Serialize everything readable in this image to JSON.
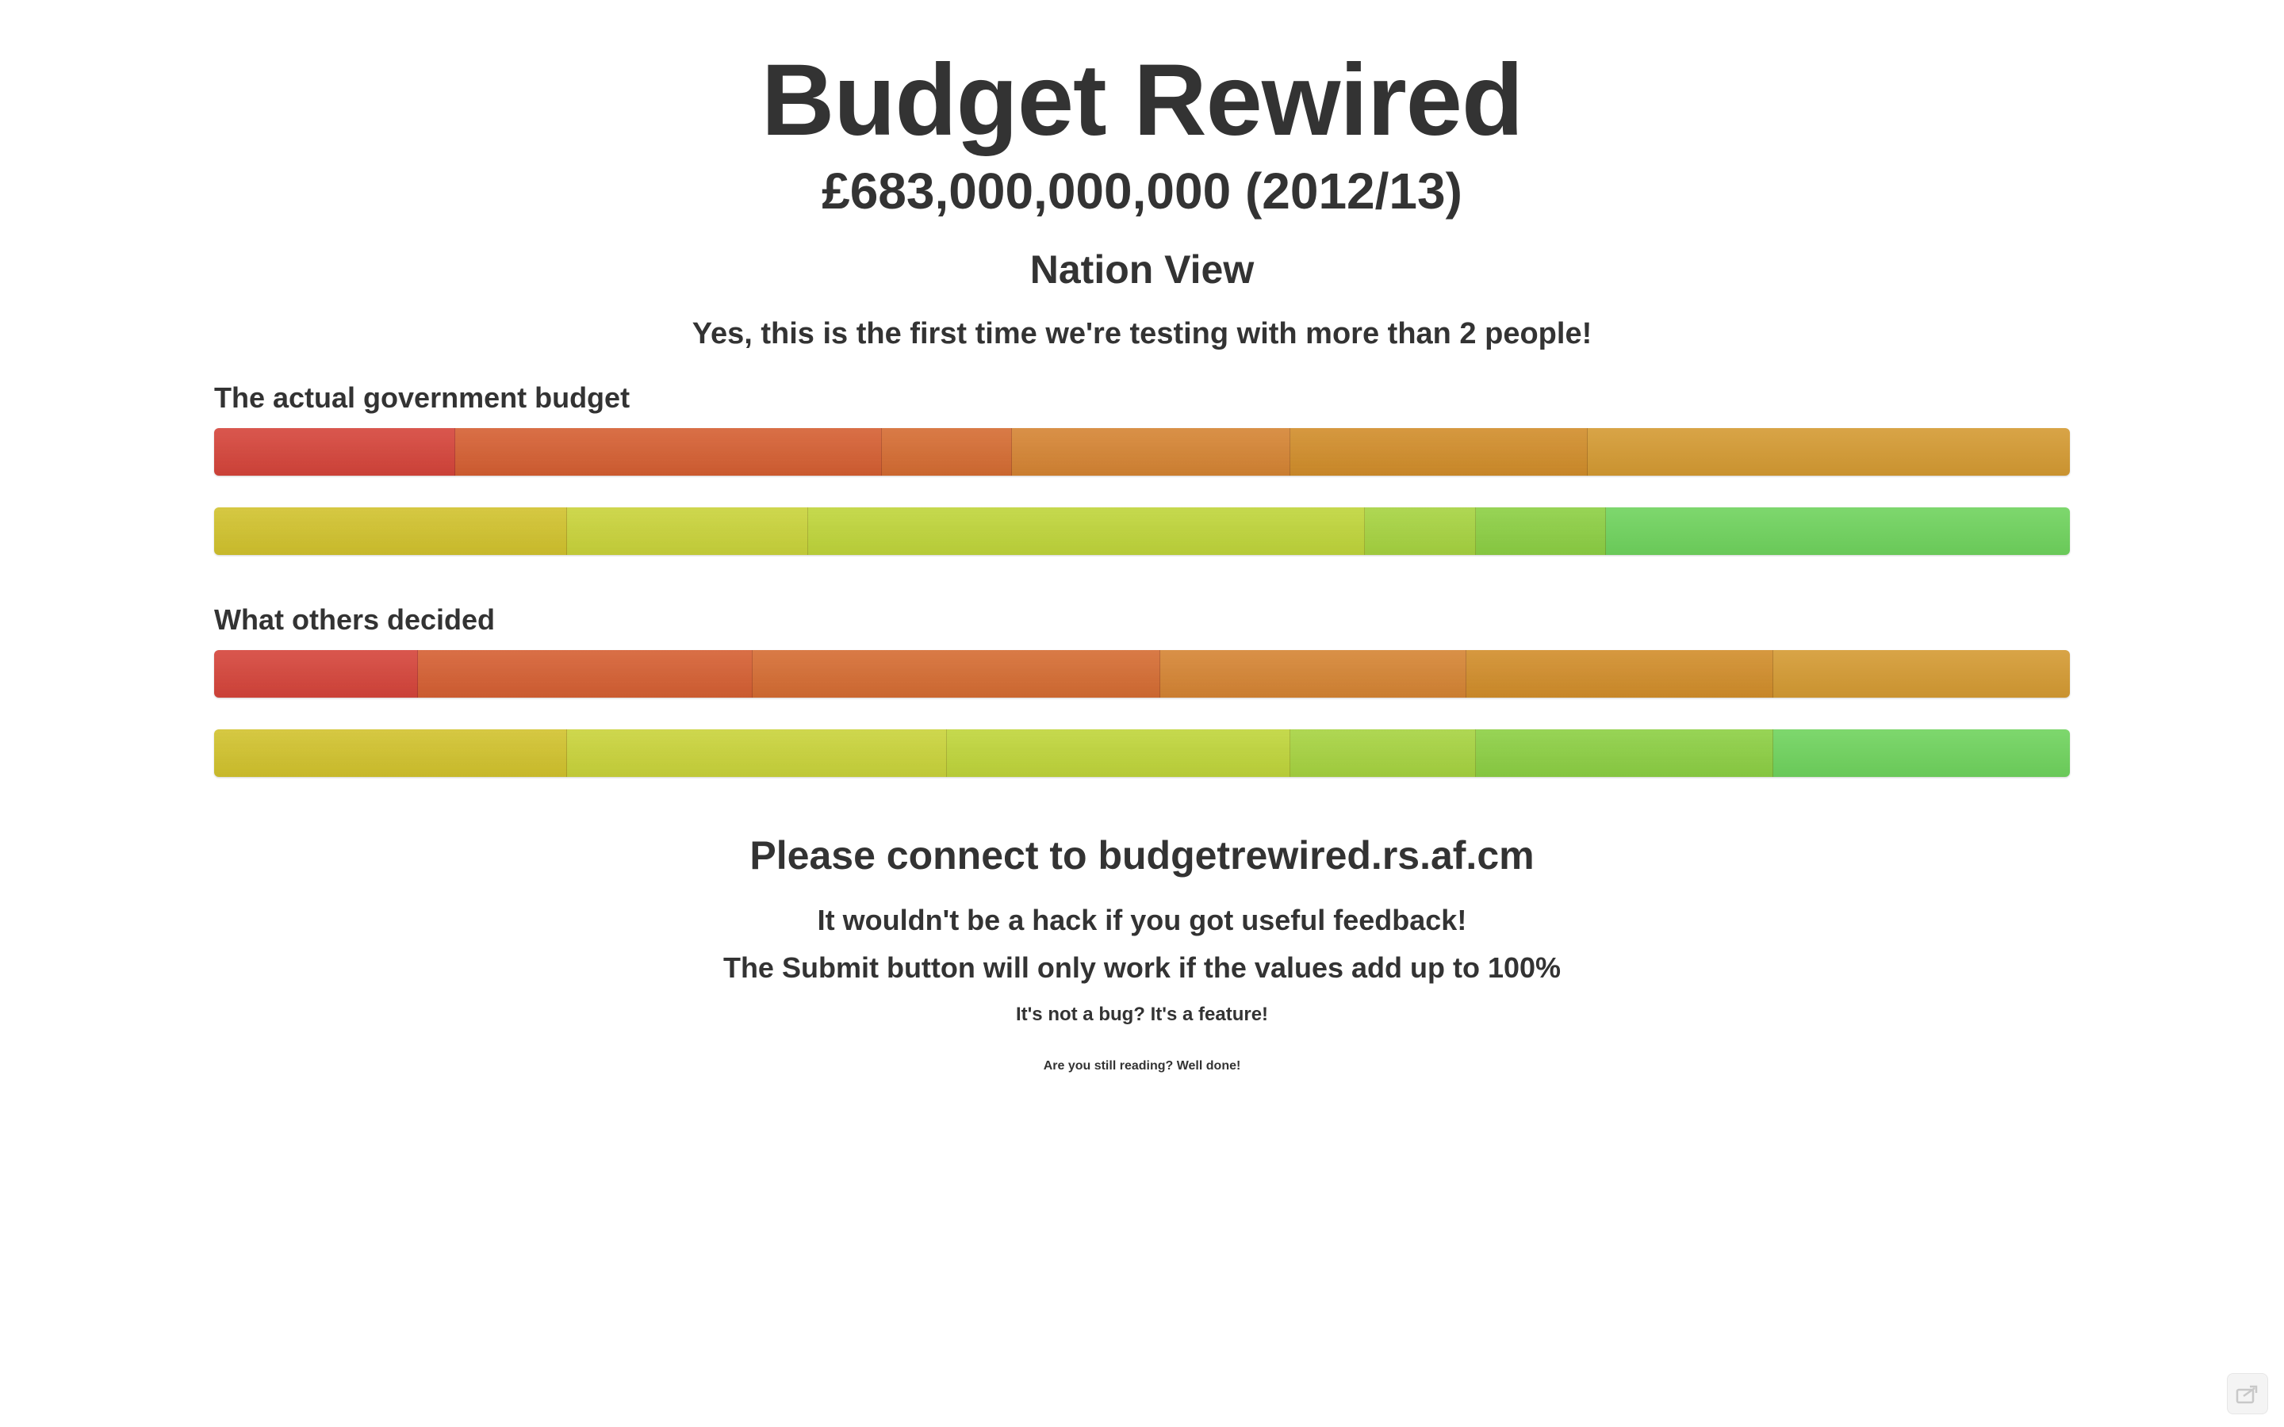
{
  "header": {
    "title": "Budget Rewired",
    "total": "£683,000,000,000 (2012/13)",
    "view": "Nation View",
    "notice": "Yes, this is the first time we're testing with more than 2 people!"
  },
  "sections": [
    {
      "label": "The actual government budget",
      "bars": [
        [
          {
            "fraction": 0.13,
            "color": "#d5443a"
          },
          {
            "fraction": 0.23,
            "color": "#d55f32"
          },
          {
            "fraction": 0.07,
            "color": "#d56c32"
          },
          {
            "fraction": 0.15,
            "color": "#d58433"
          },
          {
            "fraction": 0.16,
            "color": "#d18d2a"
          },
          {
            "fraction": 0.26,
            "color": "#d49a32"
          }
        ],
        [
          {
            "fraction": 0.19,
            "color": "#d1c22d"
          },
          {
            "fraction": 0.13,
            "color": "#c9d33a"
          },
          {
            "fraction": 0.3,
            "color": "#bfd53a"
          },
          {
            "fraction": 0.06,
            "color": "#a6d340"
          },
          {
            "fraction": 0.07,
            "color": "#8ccf43"
          },
          {
            "fraction": 0.25,
            "color": "#6fd35d"
          }
        ]
      ]
    },
    {
      "label": "What others decided",
      "bars": [
        [
          {
            "fraction": 0.11,
            "color": "#d5443a"
          },
          {
            "fraction": 0.18,
            "color": "#d55f32"
          },
          {
            "fraction": 0.22,
            "color": "#d56c32"
          },
          {
            "fraction": 0.165,
            "color": "#d58433"
          },
          {
            "fraction": 0.165,
            "color": "#d18d2a"
          },
          {
            "fraction": 0.16,
            "color": "#d49a32"
          }
        ],
        [
          {
            "fraction": 0.19,
            "color": "#d1c22d"
          },
          {
            "fraction": 0.205,
            "color": "#c9d33a"
          },
          {
            "fraction": 0.185,
            "color": "#bfd53a"
          },
          {
            "fraction": 0.1,
            "color": "#a6d340"
          },
          {
            "fraction": 0.16,
            "color": "#8ccf43"
          },
          {
            "fraction": 0.16,
            "color": "#6fd35d"
          }
        ]
      ]
    }
  ],
  "footer": {
    "connect": "Please connect to budgetrewired.rs.af.cm",
    "line1": "It wouldn't be a hack if you got useful feedback!",
    "line2": "The Submit button will only work if the values add up to 100%",
    "line3": "It's not a bug? It's a feature!",
    "line4": "Are you still reading? Well done!"
  },
  "icons": {
    "share": "share-icon"
  }
}
